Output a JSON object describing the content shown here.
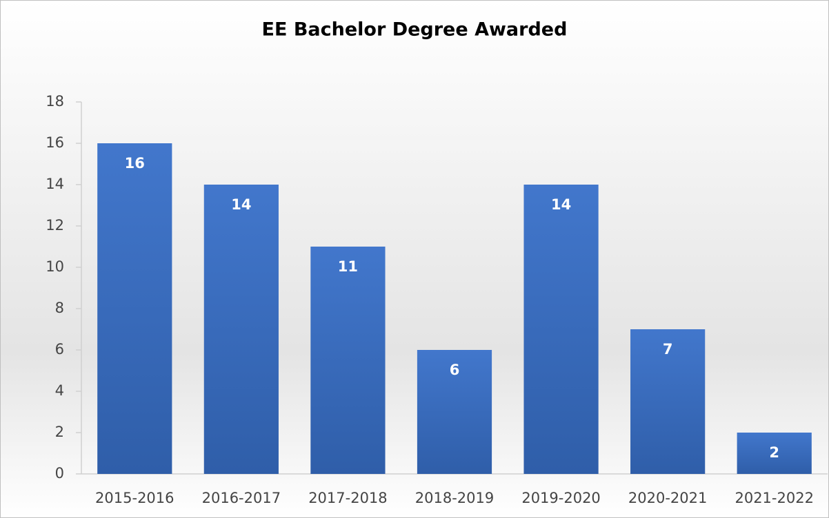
{
  "chart_data": {
    "type": "bar",
    "title": "EE Bachelor Degree Awarded",
    "categories": [
      "2015-2016",
      "2016-2017",
      "2017-2018",
      "2018-2019",
      "2019-2020",
      "2020-2021",
      "2021-2022"
    ],
    "values": [
      16,
      14,
      11,
      6,
      14,
      7,
      2
    ],
    "color": "#3a6fc4",
    "ylim": [
      0,
      18
    ],
    "yticks": [
      0,
      2,
      4,
      6,
      8,
      10,
      12,
      14,
      16,
      18
    ],
    "grid": false
  }
}
